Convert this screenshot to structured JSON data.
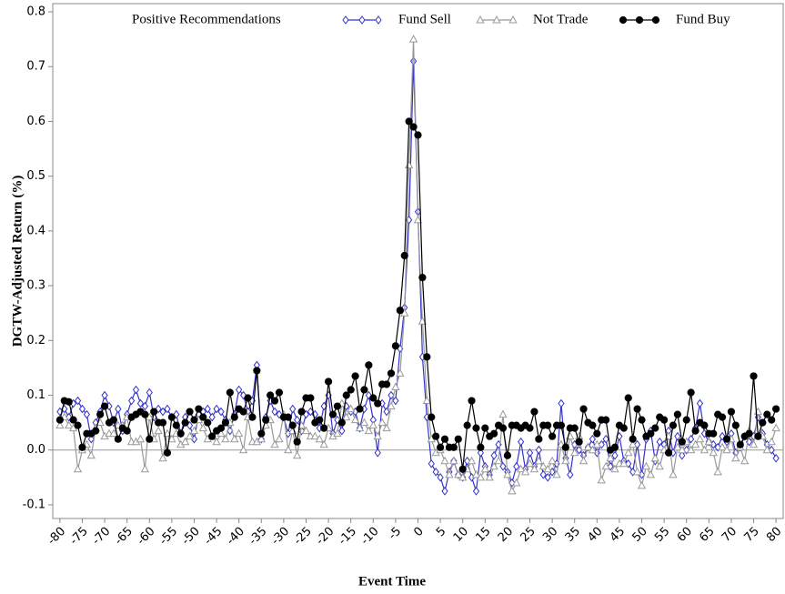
{
  "chart_data": {
    "type": "line",
    "legend_title": "Positive Recommendations",
    "x_label": "Event Time",
    "y_label": "DGTW-Adjusted Return (%)",
    "x": [
      -80,
      -79,
      -78,
      -77,
      -76,
      -75,
      -74,
      -73,
      -72,
      -71,
      -70,
      -69,
      -68,
      -67,
      -66,
      -65,
      -64,
      -63,
      -62,
      -61,
      -60,
      -59,
      -58,
      -57,
      -56,
      -55,
      -54,
      -53,
      -52,
      -51,
      -50,
      -49,
      -48,
      -47,
      -46,
      -45,
      -44,
      -43,
      -42,
      -41,
      -40,
      -39,
      -38,
      -37,
      -36,
      -35,
      -34,
      -33,
      -32,
      -31,
      -30,
      -29,
      -28,
      -27,
      -26,
      -25,
      -24,
      -23,
      -22,
      -21,
      -20,
      -19,
      -18,
      -17,
      -16,
      -15,
      -14,
      -13,
      -12,
      -11,
      -10,
      -9,
      -8,
      -7,
      -6,
      -5,
      -4,
      -3,
      -2,
      -1,
      0,
      1,
      2,
      3,
      4,
      5,
      6,
      7,
      8,
      9,
      10,
      11,
      12,
      13,
      14,
      15,
      16,
      17,
      18,
      19,
      20,
      21,
      22,
      23,
      24,
      25,
      26,
      27,
      28,
      29,
      30,
      31,
      32,
      33,
      34,
      35,
      36,
      37,
      38,
      39,
      40,
      41,
      42,
      43,
      44,
      45,
      46,
      47,
      48,
      49,
      50,
      51,
      52,
      53,
      54,
      55,
      56,
      57,
      58,
      59,
      60,
      61,
      62,
      63,
      64,
      65,
      66,
      67,
      68,
      69,
      70,
      71,
      72,
      73,
      74,
      75,
      76,
      77,
      78,
      79,
      80
    ],
    "series": [
      {
        "name": "Fund Sell",
        "color": "#3333cc",
        "marker": "diamond",
        "values": [
          0.07,
          0.075,
          0.06,
          0.085,
          0.09,
          0.075,
          0.065,
          0.02,
          0.05,
          0.07,
          0.1,
          0.08,
          0.05,
          0.075,
          0.035,
          0.065,
          0.09,
          0.11,
          0.085,
          0.08,
          0.105,
          0.06,
          0.075,
          0.07,
          0.075,
          0.06,
          0.065,
          0.03,
          0.06,
          0.045,
          0.02,
          0.065,
          0.07,
          0.075,
          0.06,
          0.075,
          0.07,
          0.055,
          0.035,
          0.065,
          0.11,
          0.1,
          0.07,
          0.09,
          0.155,
          0.02,
          0.06,
          0.09,
          0.07,
          0.065,
          0.06,
          0.03,
          0.075,
          0.055,
          0.035,
          0.065,
          0.07,
          0.065,
          0.04,
          0.08,
          0.1,
          0.03,
          0.055,
          0.035,
          0.08,
          0.07,
          0.07,
          0.04,
          0.075,
          0.1,
          0.055,
          -0.005,
          0.085,
          0.07,
          0.1,
          0.09,
          0.185,
          0.26,
          0.42,
          0.71,
          0.435,
          0.17,
          0.06,
          -0.025,
          -0.04,
          -0.05,
          -0.075,
          -0.04,
          -0.02,
          -0.045,
          -0.05,
          -0.02,
          -0.05,
          -0.075,
          -0.005,
          -0.03,
          -0.045,
          -0.01,
          0.01,
          -0.03,
          -0.04,
          -0.06,
          -0.03,
          0.015,
          -0.035,
          -0.005,
          -0.03,
          0.0,
          -0.045,
          -0.05,
          -0.04,
          -0.025,
          0.085,
          -0.015,
          -0.045,
          0.01,
          0.0,
          -0.01,
          0.005,
          0.02,
          -0.005,
          0.01,
          0.02,
          -0.03,
          -0.01,
          0.025,
          -0.02,
          -0.025,
          -0.04,
          0.01,
          -0.045,
          0.02,
          0.035,
          -0.02,
          0.015,
          0.01,
          0.035,
          -0.005,
          0.025,
          -0.01,
          0.0,
          0.02,
          0.04,
          0.085,
          0.03,
          0.015,
          0.01,
          0.005,
          0.025,
          0.015,
          0.03,
          -0.005,
          0.005,
          0.025,
          0.015,
          0.025,
          0.06,
          0.03,
          0.01,
          0.0,
          -0.015
        ]
      },
      {
        "name": "Not Trade",
        "color": "#999999",
        "marker": "triangle",
        "values": [
          0.045,
          0.06,
          0.045,
          0.04,
          -0.035,
          0.0,
          0.01,
          -0.01,
          0.04,
          0.05,
          0.025,
          0.03,
          0.03,
          0.045,
          0.045,
          0.06,
          0.015,
          0.015,
          0.02,
          -0.035,
          0.06,
          0.02,
          0.035,
          -0.015,
          0.03,
          0.02,
          0.03,
          0.01,
          0.015,
          0.025,
          0.035,
          0.055,
          0.04,
          0.02,
          0.025,
          0.015,
          0.03,
          0.02,
          0.05,
          0.02,
          0.03,
          0.0,
          0.06,
          0.015,
          0.015,
          0.02,
          0.045,
          0.055,
          0.01,
          0.02,
          0.065,
          0.0,
          0.035,
          -0.01,
          0.045,
          0.035,
          0.025,
          0.025,
          0.02,
          0.01,
          0.04,
          0.025,
          0.03,
          0.085,
          0.06,
          0.075,
          0.055,
          0.04,
          0.05,
          0.035,
          0.045,
          0.025,
          0.05,
          0.04,
          0.08,
          0.115,
          0.14,
          0.25,
          0.52,
          0.75,
          0.42,
          0.235,
          0.09,
          0.02,
          -0.005,
          0.0,
          -0.02,
          -0.045,
          -0.02,
          -0.045,
          -0.05,
          -0.035,
          -0.02,
          -0.045,
          -0.05,
          -0.035,
          -0.05,
          -0.03,
          -0.02,
          0.065,
          -0.045,
          -0.075,
          -0.06,
          -0.035,
          -0.04,
          -0.025,
          -0.035,
          -0.02,
          -0.03,
          -0.035,
          -0.02,
          -0.045,
          0.01,
          -0.02,
          0.025,
          -0.005,
          0.025,
          -0.02,
          0.005,
          0.0,
          0.01,
          -0.055,
          -0.03,
          -0.015,
          -0.035,
          -0.025,
          -0.025,
          -0.005,
          0.01,
          -0.04,
          -0.065,
          -0.03,
          -0.045,
          -0.015,
          -0.03,
          0.0,
          0.025,
          -0.045,
          0.005,
          0.0,
          0.015,
          0.0,
          0.01,
          0.02,
          0.0,
          0.015,
          -0.005,
          -0.04,
          0.005,
          0.0,
          0.02,
          -0.015,
          0.005,
          -0.02,
          0.035,
          0.01,
          0.07,
          0.025,
          0.0,
          0.015,
          0.04
        ]
      },
      {
        "name": "Fund Buy",
        "color": "#000000",
        "marker": "circle",
        "values": [
          0.055,
          0.09,
          0.088,
          0.055,
          0.045,
          0.005,
          0.03,
          0.03,
          0.035,
          0.065,
          0.08,
          0.05,
          0.055,
          0.02,
          0.04,
          0.035,
          0.06,
          0.065,
          0.07,
          0.065,
          0.02,
          0.07,
          0.05,
          0.05,
          -0.005,
          0.06,
          0.045,
          0.03,
          0.05,
          0.07,
          0.055,
          0.075,
          0.06,
          0.05,
          0.025,
          0.035,
          0.04,
          0.05,
          0.105,
          0.06,
          0.075,
          0.07,
          0.095,
          0.06,
          0.145,
          0.03,
          0.055,
          0.1,
          0.09,
          0.105,
          0.06,
          0.06,
          0.045,
          0.015,
          0.07,
          0.095,
          0.095,
          0.05,
          0.055,
          0.04,
          0.125,
          0.065,
          0.08,
          0.05,
          0.1,
          0.11,
          0.135,
          0.075,
          0.11,
          0.155,
          0.095,
          0.085,
          0.12,
          0.12,
          0.14,
          0.19,
          0.255,
          0.355,
          0.6,
          0.59,
          0.575,
          0.315,
          0.17,
          0.06,
          0.025,
          0.005,
          0.02,
          0.005,
          0.005,
          0.02,
          -0.035,
          0.045,
          0.09,
          0.04,
          0.005,
          0.04,
          0.025,
          0.03,
          0.045,
          0.04,
          -0.01,
          0.045,
          0.045,
          0.04,
          0.045,
          0.04,
          0.07,
          0.02,
          0.045,
          0.045,
          0.025,
          0.045,
          0.045,
          0.005,
          0.04,
          0.04,
          0.015,
          0.075,
          0.05,
          0.045,
          0.03,
          0.055,
          0.055,
          0.0,
          0.005,
          0.045,
          0.04,
          0.095,
          0.02,
          0.075,
          0.055,
          0.025,
          0.03,
          0.04,
          0.06,
          0.055,
          -0.005,
          0.045,
          0.065,
          0.015,
          0.055,
          0.105,
          0.035,
          0.05,
          0.045,
          0.03,
          0.03,
          0.065,
          0.06,
          0.02,
          0.07,
          0.045,
          0.01,
          0.025,
          0.03,
          0.135,
          0.025,
          0.05,
          0.065,
          0.055,
          0.075
        ]
      }
    ],
    "xlim": [
      -81.6,
      81.6
    ],
    "xticks": [
      -80,
      -75,
      -70,
      -65,
      -60,
      -55,
      -50,
      -45,
      -40,
      -35,
      -30,
      -25,
      -20,
      -15,
      -10,
      -5,
      0,
      5,
      10,
      15,
      20,
      25,
      30,
      35,
      40,
      45,
      50,
      55,
      60,
      65,
      70,
      75,
      80
    ],
    "ylim": [
      -0.125,
      0.815
    ],
    "yticks": [
      -0.1,
      {
        "value": 0,
        "label": "0.0"
      },
      0.1,
      0.2,
      0.3,
      0.4,
      0.5,
      0.6,
      0.7,
      0.8
    ],
    "reference_line": 0,
    "grid": false
  }
}
